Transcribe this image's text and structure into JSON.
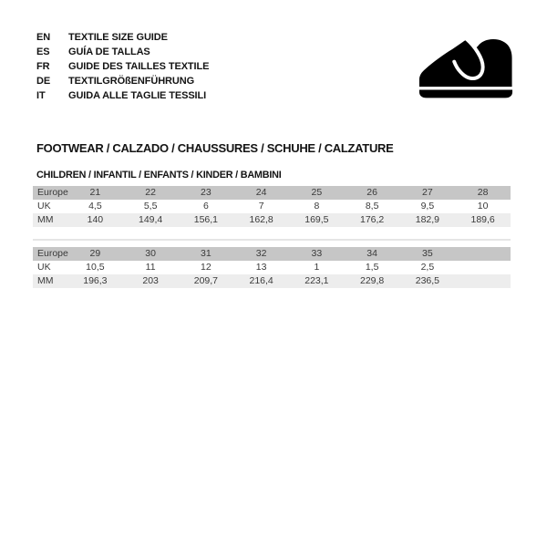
{
  "document": {
    "languages": [
      {
        "code": "EN",
        "title": "TEXTILE SIZE GUIDE"
      },
      {
        "code": "ES",
        "title": "GUÍA DE TALLAS"
      },
      {
        "code": "FR",
        "title": "GUIDE DES TAILLES TEXTILE"
      },
      {
        "code": "DE",
        "title": "TEXTILGRÖßENFÜHRUNG"
      },
      {
        "code": "IT",
        "title": "GUIDA ALLE TAGLIE TESSILI"
      }
    ],
    "logo_icon": "baby-shoe-icon",
    "section_title": "FOOTWEAR / CALZADO / CHAUSSURES / SCHUHE / CALZATURE",
    "section_subtitle": "CHILDREN / INFANTIL / ENFANTS / KINDER / BAMBINI"
  },
  "size_tables": [
    {
      "rows": [
        {
          "label": "Europe",
          "values": [
            "21",
            "22",
            "23",
            "24",
            "25",
            "26",
            "27",
            "28"
          ]
        },
        {
          "label": "UK",
          "values": [
            "4,5",
            "5,5",
            "6",
            "7",
            "8",
            "8,5",
            "9,5",
            "10"
          ]
        },
        {
          "label": "MM",
          "values": [
            "140",
            "149,4",
            "156,1",
            "162,8",
            "169,5",
            "176,2",
            "182,9",
            "189,6"
          ]
        }
      ]
    },
    {
      "rows": [
        {
          "label": "Europe",
          "values": [
            "29",
            "30",
            "31",
            "32",
            "33",
            "34",
            "35",
            ""
          ]
        },
        {
          "label": "UK",
          "values": [
            "10,5",
            "11",
            "12",
            "13",
            "1",
            "1,5",
            "2,5",
            ""
          ]
        },
        {
          "label": "MM",
          "values": [
            "196,3",
            "203",
            "209,7",
            "216,4",
            "223,1",
            "229,8",
            "236,5",
            ""
          ]
        }
      ]
    }
  ],
  "colors": {
    "background": "#ffffff",
    "heading_text": "#141414",
    "text": "#3a3a3a",
    "row_header_bg": "#c6c6c6",
    "row_alt_bg": "#ededed",
    "separator": "#e5e5e5",
    "logo": "#000000"
  }
}
